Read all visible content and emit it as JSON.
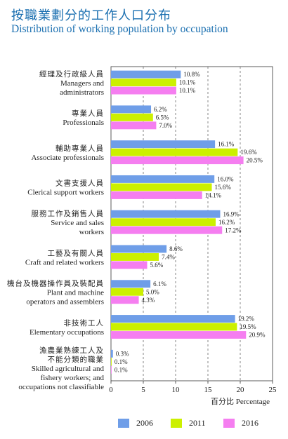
{
  "title_zh": "按職業劃分的工作人口分布",
  "title_en": "Distribution of working population by occupation",
  "chart_data": {
    "type": "bar",
    "orientation": "horizontal",
    "xlabel": "百分比  Percentage",
    "xlim": [
      0,
      25
    ],
    "xticks": [
      0,
      5,
      10,
      15,
      20,
      25
    ],
    "grid": "vertical-dashed",
    "legend_position": "bottom",
    "categories": [
      {
        "label_zh": "經理及行政級人員",
        "label_en": [
          "Managers and",
          "administrators"
        ]
      },
      {
        "label_zh": "專業人員",
        "label_en": [
          "Professionals"
        ]
      },
      {
        "label_zh": "輔助專業人員",
        "label_en": [
          "Associate professionals"
        ]
      },
      {
        "label_zh": "文書支援人員",
        "label_en": [
          "Clerical support workers"
        ]
      },
      {
        "label_zh": "服務工作及銷售人員",
        "label_en": [
          "Service and sales",
          "workers"
        ]
      },
      {
        "label_zh": "工藝及有關人員",
        "label_en": [
          "Craft and related workers"
        ]
      },
      {
        "label_zh": "機台及機器操作員及裝配員",
        "label_en": [
          "Plant and machine",
          "operators and assemblers"
        ]
      },
      {
        "label_zh": "非技術工人",
        "label_en": [
          "Elementary occupations"
        ]
      },
      {
        "label_zh": "漁農業熟練工人及\n不能分類的職業",
        "label_en": [
          "Skilled agricultural and",
          "fishery workers; and",
          "occupations not classifiable"
        ]
      }
    ],
    "series": [
      {
        "name": "2006",
        "color": "#6f9ee8",
        "values": [
          10.8,
          6.2,
          16.1,
          16.0,
          16.9,
          8.6,
          6.1,
          19.2,
          0.3
        ]
      },
      {
        "name": "2011",
        "color": "#ccf000",
        "values": [
          10.1,
          6.5,
          19.6,
          15.6,
          16.2,
          7.4,
          5.0,
          19.5,
          0.1
        ]
      },
      {
        "name": "2016",
        "color": "#f57ef0",
        "values": [
          10.1,
          7.0,
          20.5,
          14.1,
          17.2,
          5.6,
          4.3,
          20.9,
          0.1
        ]
      }
    ]
  }
}
